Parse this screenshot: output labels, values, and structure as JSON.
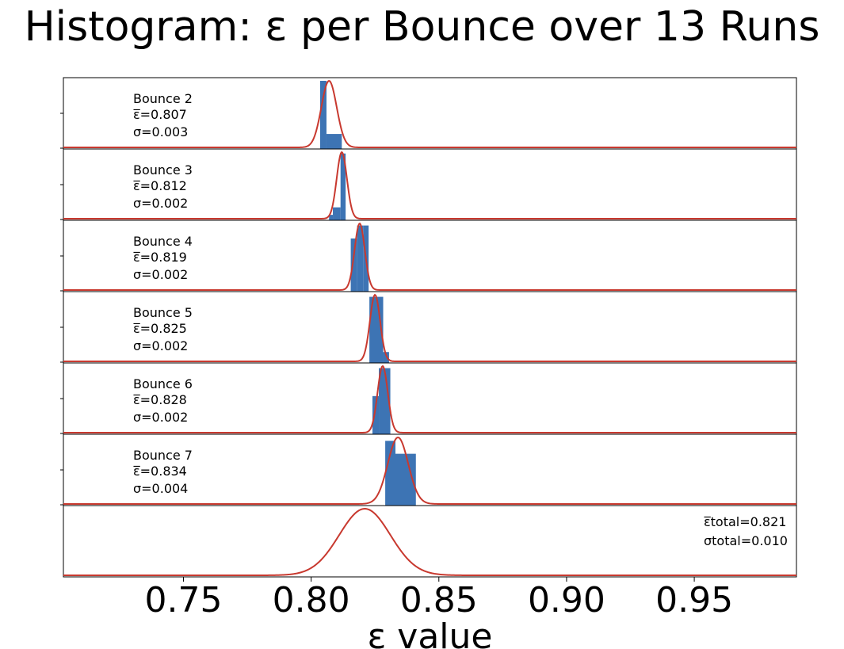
{
  "chart_title": "Histogram: ε per Bounce over 13 Runs",
  "chart_data": {
    "type": "histogram-stack",
    "title": "Histogram: ε per Bounce over 13 Runs",
    "xlabel": "ε value",
    "xlim": [
      0.703,
      0.99
    ],
    "xticks": [
      0.75,
      0.8,
      0.85,
      0.9,
      0.95
    ],
    "xtick_labels": [
      "0.75",
      "0.80",
      "0.85",
      "0.90",
      "0.95"
    ],
    "bar_color": "#3d74b4",
    "curve_color": "#c8392f",
    "panels": [
      {
        "label": "Bounce 2",
        "mean_label": "ε̅=0.807",
        "sigma_label": "σ=0.003",
        "mean": 0.807,
        "sigma": 0.003,
        "bins": [
          {
            "x0": 0.8035,
            "x1": 0.806,
            "h": 1.0
          },
          {
            "x0": 0.806,
            "x1": 0.812,
            "h": 0.22
          }
        ]
      },
      {
        "label": "Bounce 3",
        "mean_label": "ε̅=0.812",
        "sigma_label": "σ=0.002",
        "mean": 0.812,
        "sigma": 0.002,
        "bins": [
          {
            "x0": 0.807,
            "x1": 0.8085,
            "h": 0.08
          },
          {
            "x0": 0.8085,
            "x1": 0.8115,
            "h": 0.19
          },
          {
            "x0": 0.8115,
            "x1": 0.8135,
            "h": 0.98
          }
        ]
      },
      {
        "label": "Bounce 4",
        "mean_label": "ε̅=0.819",
        "sigma_label": "σ=0.002",
        "mean": 0.819,
        "sigma": 0.002,
        "bins": [
          {
            "x0": 0.8155,
            "x1": 0.818,
            "h": 0.78
          },
          {
            "x0": 0.818,
            "x1": 0.8205,
            "h": 0.97
          },
          {
            "x0": 0.8205,
            "x1": 0.8225,
            "h": 0.97
          }
        ]
      },
      {
        "label": "Bounce 5",
        "mean_label": "ε̅=0.825",
        "sigma_label": "σ=0.002",
        "mean": 0.825,
        "sigma": 0.002,
        "bins": [
          {
            "x0": 0.8228,
            "x1": 0.8282,
            "h": 0.97
          },
          {
            "x0": 0.8282,
            "x1": 0.8305,
            "h": 0.16
          }
        ]
      },
      {
        "label": "Bounce 6",
        "mean_label": "ε̅=0.828",
        "sigma_label": "σ=0.002",
        "mean": 0.828,
        "sigma": 0.002,
        "bins": [
          {
            "x0": 0.824,
            "x1": 0.8265,
            "h": 0.56
          },
          {
            "x0": 0.8265,
            "x1": 0.8285,
            "h": 0.97
          },
          {
            "x0": 0.8285,
            "x1": 0.831,
            "h": 0.97
          }
        ]
      },
      {
        "label": "Bounce 7",
        "mean_label": "ε̅=0.834",
        "sigma_label": "σ=0.004",
        "mean": 0.834,
        "sigma": 0.004,
        "bins": [
          {
            "x0": 0.829,
            "x1": 0.833,
            "h": 0.95
          },
          {
            "x0": 0.833,
            "x1": 0.841,
            "h": 0.76
          }
        ]
      }
    ],
    "total": {
      "mean_label": "ε̅total=0.821",
      "sigma_label": "σtotal=0.010",
      "mean": 0.821,
      "sigma": 0.01
    }
  }
}
